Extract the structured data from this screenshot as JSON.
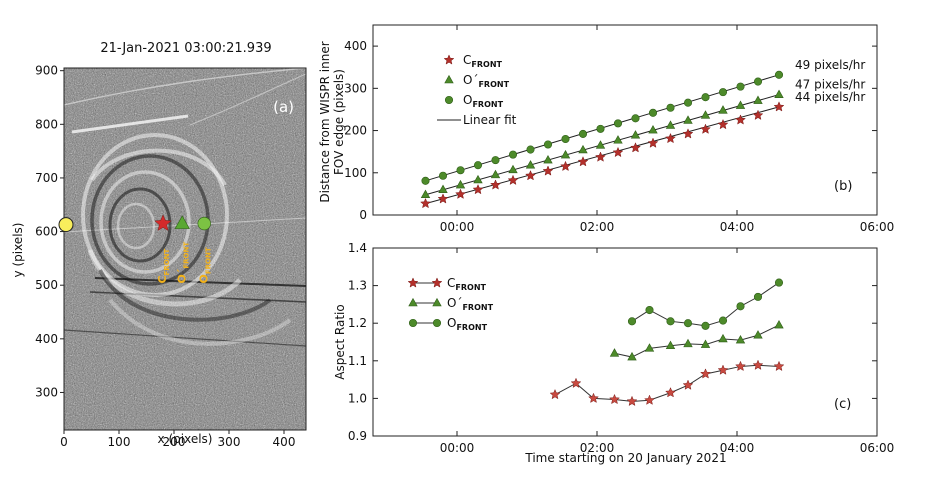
{
  "panel_a": {
    "title": "21-Jan-2021 03:00:21.939",
    "panel_label": "(a)",
    "xlabel": "x (pixels)",
    "ylabel": "y (pixels)",
    "xticks": [
      0,
      100,
      200,
      300,
      400
    ],
    "yticks": [
      300,
      400,
      500,
      600,
      700,
      800,
      900
    ],
    "xlim": [
      0,
      440
    ],
    "ylim": [
      230,
      905
    ],
    "markers": [
      {
        "id": "c",
        "label_main": "C",
        "label_sub": "FRONT",
        "shape": "star",
        "color": "#d42a2a",
        "x": 180,
        "y": 615
      },
      {
        "id": "o1",
        "label_main": "O´",
        "label_sub": "FRONT",
        "shape": "triangle",
        "color": "#5aa832",
        "x": 215,
        "y": 615
      },
      {
        "id": "o",
        "label_main": "O",
        "label_sub": "FRONT",
        "shape": "circle",
        "color": "#7cc243",
        "x": 255,
        "y": 615
      }
    ],
    "sun": {
      "color": "#f8ee5c",
      "x": 2,
      "y": 613
    }
  },
  "chart_data": [
    {
      "id": "b",
      "type": "line",
      "panel_label": "(b)",
      "ylabel_lines": [
        "Distance from WISPR inner",
        "FOV edge (pixels)"
      ],
      "xlabel": "",
      "xlim": [
        -1.2,
        6.0
      ],
      "ylim": [
        0,
        450
      ],
      "xticks": [
        {
          "v": 0,
          "label": "00:00"
        },
        {
          "v": 2,
          "label": "02:00"
        },
        {
          "v": 4,
          "label": "04:00"
        },
        {
          "v": 6,
          "label": "06:00"
        }
      ],
      "yticks": [
        0,
        100,
        200,
        300,
        400
      ],
      "legend": [
        {
          "main": "C",
          "sub": "FRONT",
          "shape": "star",
          "color": "#b3302b"
        },
        {
          "main": "O´",
          "sub": "FRONT",
          "shape": "triangle",
          "color": "#4d8a2a"
        },
        {
          "main": "O",
          "sub": "FRONT",
          "shape": "circle",
          "color": "#4d8a2a"
        },
        {
          "main": "Linear fit",
          "sub": "",
          "shape": "line",
          "color": "#222222"
        }
      ],
      "series": [
        {
          "name": "O_FRONT",
          "shape": "circle",
          "color": "#4d8a2a",
          "rate_label": "49 pixels/hr",
          "x": [
            -0.45,
            -0.2,
            0.05,
            0.3,
            0.55,
            0.8,
            1.05,
            1.3,
            1.55,
            1.8,
            2.05,
            2.3,
            2.55,
            2.8,
            3.05,
            3.3,
            3.55,
            3.8,
            4.05,
            4.3,
            4.6
          ],
          "y": [
            81,
            93,
            106,
            118,
            130,
            143,
            155,
            167,
            180,
            192,
            204,
            217,
            229,
            242,
            254,
            266,
            279,
            291,
            304,
            316,
            332
          ]
        },
        {
          "name": "O'_FRONT",
          "shape": "triangle",
          "color": "#4d8a2a",
          "rate_label": "47 pixels/hr",
          "x": [
            -0.45,
            -0.2,
            0.05,
            0.3,
            0.55,
            0.8,
            1.05,
            1.3,
            1.55,
            1.8,
            2.05,
            2.3,
            2.55,
            2.8,
            3.05,
            3.3,
            3.55,
            3.8,
            4.05,
            4.3,
            4.6
          ],
          "y": [
            48,
            60,
            71,
            83,
            95,
            107,
            118,
            130,
            142,
            154,
            165,
            177,
            189,
            201,
            212,
            224,
            236,
            248,
            259,
            271,
            285
          ]
        },
        {
          "name": "C_FRONT",
          "shape": "star",
          "color": "#b3302b",
          "rate_label": "44 pixels/hr",
          "x": [
            -0.45,
            -0.2,
            0.05,
            0.3,
            0.55,
            0.8,
            1.05,
            1.3,
            1.55,
            1.8,
            2.05,
            2.3,
            2.55,
            2.8,
            3.05,
            3.3,
            3.55,
            3.8,
            4.05,
            4.3,
            4.6
          ],
          "y": [
            27,
            38,
            49,
            60,
            71,
            82,
            93,
            104,
            115,
            126,
            137,
            148,
            159,
            170,
            181,
            192,
            203,
            214,
            225,
            236,
            256
          ]
        }
      ]
    },
    {
      "id": "c",
      "type": "line",
      "panel_label": "(c)",
      "ylabel": "Aspect Ratio",
      "xlabel": "Time starting on 20 January 2021",
      "xlim": [
        -1.2,
        6.0
      ],
      "ylim": [
        0.9,
        1.4
      ],
      "xticks": [
        {
          "v": 0,
          "label": "00:00"
        },
        {
          "v": 2,
          "label": "02:00"
        },
        {
          "v": 4,
          "label": "04:00"
        },
        {
          "v": 6,
          "label": "06:00"
        }
      ],
      "yticks": [
        0.9,
        1.0,
        1.1,
        1.2,
        1.3,
        1.4
      ],
      "legend": [
        {
          "main": "C",
          "sub": "FRONT",
          "shape": "star",
          "color": "#b3302b"
        },
        {
          "main": "O´",
          "sub": "FRONT",
          "shape": "triangle",
          "color": "#4d8a2a"
        },
        {
          "main": "O",
          "sub": "FRONT",
          "shape": "circle",
          "color": "#4d8a2a"
        }
      ],
      "series": [
        {
          "name": "C_FRONT",
          "shape": "star",
          "color": "#c84a40",
          "x": [
            1.4,
            1.7,
            1.95,
            2.25,
            2.5,
            2.75,
            3.05,
            3.3,
            3.55,
            3.8,
            4.05,
            4.3,
            4.6
          ],
          "y": [
            1.01,
            1.04,
            1.0,
            0.997,
            0.992,
            0.995,
            1.015,
            1.035,
            1.065,
            1.075,
            1.085,
            1.088,
            1.085
          ]
        },
        {
          "name": "O'_FRONT",
          "shape": "triangle",
          "color": "#4d8a2a",
          "x": [
            2.25,
            2.5,
            2.75,
            3.05,
            3.3,
            3.55,
            3.8,
            4.05,
            4.3,
            4.6
          ],
          "y": [
            1.12,
            1.11,
            1.133,
            1.14,
            1.145,
            1.143,
            1.158,
            1.155,
            1.168,
            1.195
          ]
        },
        {
          "name": "O_FRONT",
          "shape": "circle",
          "color": "#4d8a2a",
          "x": [
            2.5,
            2.75,
            3.05,
            3.3,
            3.55,
            3.8,
            4.05,
            4.3,
            4.6
          ],
          "y": [
            1.205,
            1.235,
            1.205,
            1.2,
            1.193,
            1.207,
            1.245,
            1.27,
            1.308
          ]
        }
      ]
    }
  ]
}
